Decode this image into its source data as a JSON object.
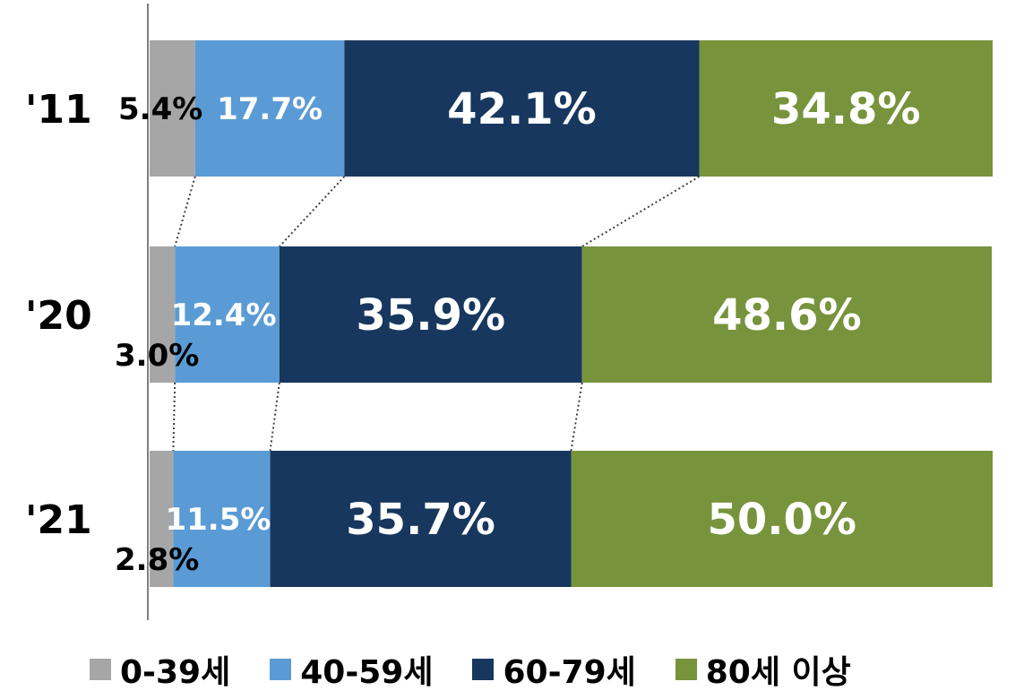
{
  "chart_data": {
    "type": "bar",
    "orientation": "horizontal",
    "stacked": true,
    "normalized_percent": true,
    "categories": [
      "'11",
      "'20",
      "'21"
    ],
    "series": [
      {
        "name": "0-39세",
        "color": "#a6a6a6",
        "values": [
          5.4,
          3.0,
          2.8
        ],
        "labels": [
          "5.4%",
          "3.0%",
          "2.8%"
        ]
      },
      {
        "name": "40-59세",
        "color": "#5b9bd5",
        "values": [
          17.7,
          12.4,
          11.5
        ],
        "labels": [
          "17.7%",
          "12.4%",
          "11.5%"
        ]
      },
      {
        "name": "60-79세",
        "color": "#17375e",
        "values": [
          42.1,
          35.9,
          35.7
        ],
        "labels": [
          "42.1%",
          "35.9%",
          "35.7%"
        ]
      },
      {
        "name": "80세 이상",
        "color": "#77933c",
        "values": [
          34.8,
          48.6,
          50.0
        ],
        "labels": [
          "34.8%",
          "48.6%",
          "50.0%"
        ]
      }
    ],
    "xlim": [
      0,
      100
    ],
    "grid": false,
    "connector_lines": true,
    "legend_position": "bottom"
  }
}
